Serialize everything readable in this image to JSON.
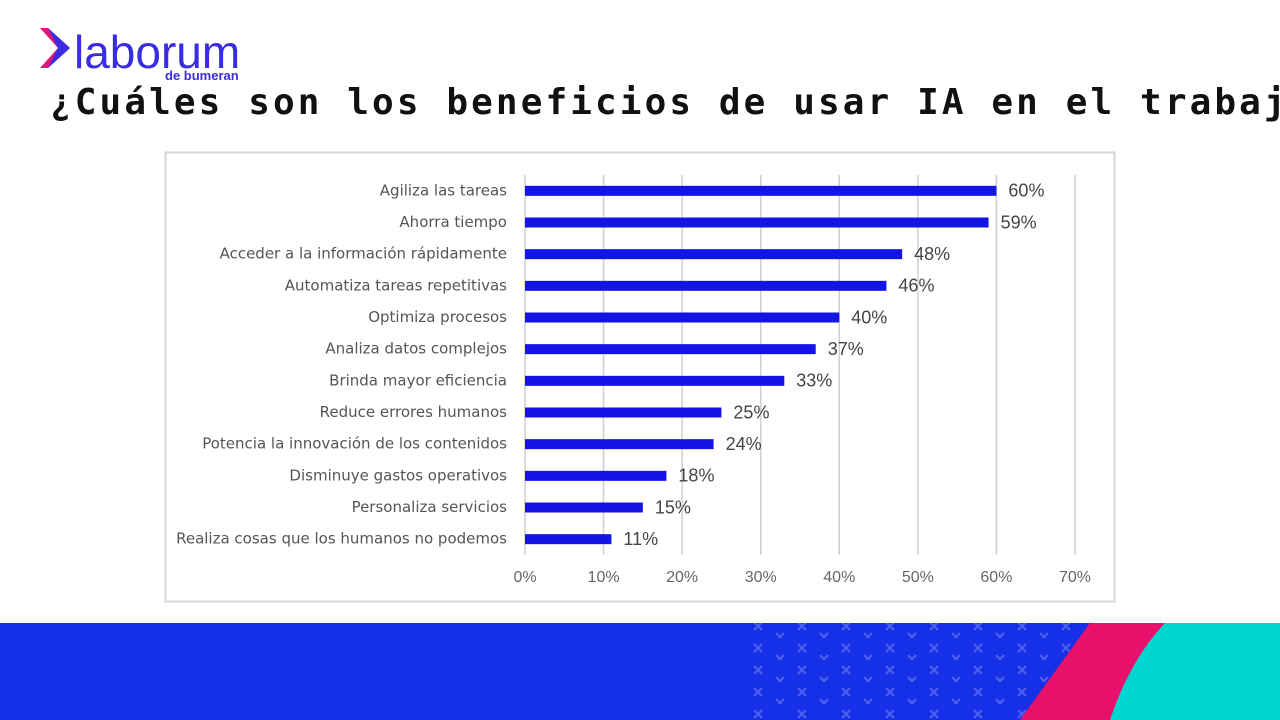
{
  "logo": {
    "name": "laborum",
    "tagline": "de bumeran"
  },
  "chart_data": {
    "type": "bar",
    "orientation": "horizontal",
    "title": "¿Cuáles son los beneficios de usar IA en el trabajo?",
    "categories": [
      "Agiliza las tareas",
      "Ahorra tiempo",
      "Acceder a la información rápidamente",
      "Automatiza tareas repetitivas",
      "Optimiza procesos",
      "Analiza datos complejos",
      "Brinda mayor eficiencia",
      "Reduce errores humanos",
      "Potencia la innovación de los contenidos",
      "Disminuye gastos operativos",
      "Personaliza servicios",
      "Realiza cosas que los humanos no podemos"
    ],
    "values": [
      60,
      59,
      48,
      46,
      40,
      37,
      33,
      25,
      24,
      18,
      15,
      11
    ],
    "value_labels": [
      "60%",
      "59%",
      "48%",
      "46%",
      "40%",
      "37%",
      "33%",
      "25%",
      "24%",
      "18%",
      "15%",
      "11%"
    ],
    "color": "#1414e6",
    "xlim": [
      0,
      70
    ],
    "xticks": [
      {
        "value": 0,
        "label": "0%"
      },
      {
        "value": 10,
        "label": "10%"
      },
      {
        "value": 20,
        "label": "20%"
      },
      {
        "value": 30,
        "label": "30%"
      },
      {
        "value": 40,
        "label": "40%"
      },
      {
        "value": 50,
        "label": "50%"
      },
      {
        "value": 60,
        "label": "60%"
      },
      {
        "value": 70,
        "label": "70%"
      }
    ],
    "grid": true
  }
}
